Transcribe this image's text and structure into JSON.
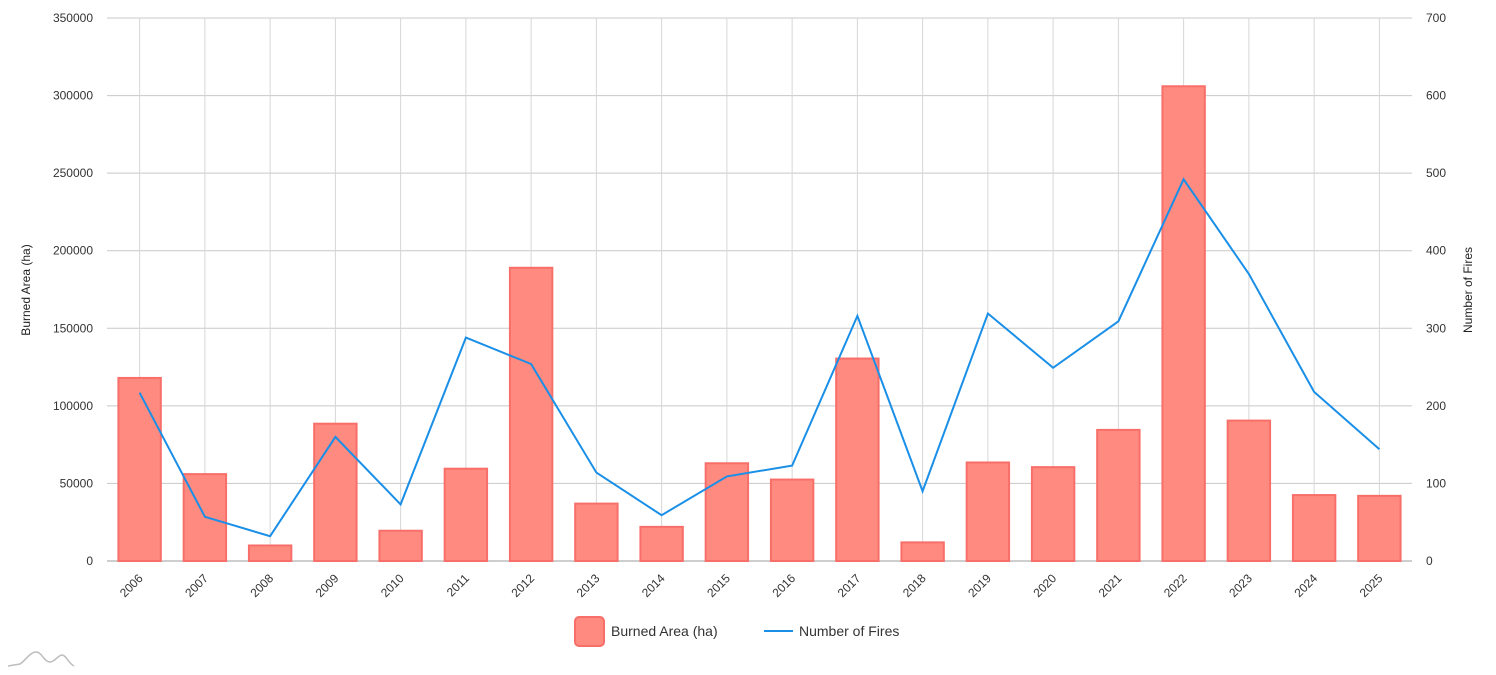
{
  "chart_data": {
    "type": "bar",
    "categories": [
      "2006",
      "2007",
      "2008",
      "2009",
      "2010",
      "2011",
      "2012",
      "2013",
      "2014",
      "2015",
      "2016",
      "2017",
      "2018",
      "2019",
      "2020",
      "2021",
      "2022",
      "2023",
      "2024",
      "2025"
    ],
    "series": [
      {
        "name": "Burned Area (ha)",
        "type": "bar",
        "axis": "left",
        "color": "#ff8a80",
        "stroke": "#f86f6a",
        "values": [
          118000,
          56000,
          10000,
          88500,
          19500,
          59500,
          189000,
          37000,
          22000,
          63000,
          52500,
          130500,
          12000,
          63500,
          60500,
          84500,
          306000,
          90500,
          42500,
          42000
        ]
      },
      {
        "name": "Number of Fires",
        "type": "line",
        "axis": "right",
        "color": "#1a8fe8",
        "values": [
          217,
          57,
          32,
          160,
          73,
          288,
          254,
          114,
          59,
          109,
          123,
          316,
          90,
          319,
          249,
          309,
          492,
          370,
          218,
          144
        ]
      }
    ],
    "ylabel": "Burned Area (ha)",
    "y2label": "Number of Fires",
    "ylim": [
      0,
      350000
    ],
    "y2lim": [
      0,
      700
    ],
    "yticks": [
      "0",
      "50000",
      "100000",
      "150000",
      "200000",
      "250000",
      "300000",
      "350000"
    ],
    "y2ticks": [
      "0",
      "100",
      "200",
      "300",
      "400",
      "500",
      "600",
      "700"
    ],
    "grid": true,
    "legend_position": "bottom-center"
  }
}
